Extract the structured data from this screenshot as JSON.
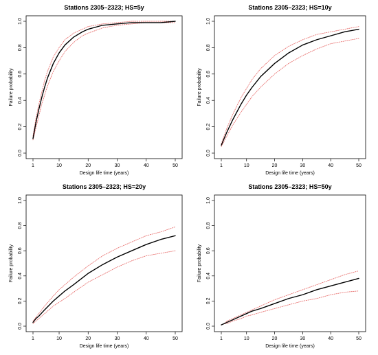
{
  "chart_data": [
    {
      "type": "line",
      "title": "Stations 2305–2323; HS=5y",
      "xlabel": "Design life time (years)",
      "ylabel": "Failure probability",
      "xlim": [
        1,
        50
      ],
      "ylim": [
        0,
        1
      ],
      "xticks": [
        1,
        10,
        20,
        30,
        40,
        50
      ],
      "yticks": [
        0.0,
        0.2,
        0.4,
        0.6,
        0.8,
        1.0
      ],
      "return_period": 5,
      "series": [
        {
          "style": "solid",
          "color": "#000000",
          "x": [
            1,
            2,
            3,
            4,
            5,
            6,
            8,
            10,
            12,
            15,
            18,
            20,
            25,
            30,
            35,
            40,
            45,
            50
          ],
          "y": [
            0.11,
            0.23,
            0.33,
            0.42,
            0.5,
            0.57,
            0.68,
            0.76,
            0.82,
            0.88,
            0.92,
            0.94,
            0.97,
            0.98,
            0.99,
            0.99,
            0.99,
            1.0
          ]
        },
        {
          "style": "dotted",
          "color": "#e8706e",
          "x": [
            1,
            2,
            3,
            4,
            5,
            6,
            8,
            10,
            12,
            15,
            18,
            20,
            25,
            30,
            35,
            40,
            45,
            50
          ],
          "y": [
            0.13,
            0.26,
            0.37,
            0.46,
            0.55,
            0.62,
            0.73,
            0.8,
            0.86,
            0.91,
            0.94,
            0.96,
            0.98,
            0.99,
            1.0,
            1.0,
            1.0,
            1.0
          ]
        },
        {
          "style": "dotted",
          "color": "#e8706e",
          "x": [
            1,
            2,
            3,
            4,
            5,
            6,
            8,
            10,
            12,
            15,
            18,
            20,
            25,
            30,
            35,
            40,
            45,
            50
          ],
          "y": [
            0.1,
            0.19,
            0.28,
            0.37,
            0.44,
            0.51,
            0.62,
            0.7,
            0.77,
            0.84,
            0.89,
            0.91,
            0.95,
            0.97,
            0.98,
            0.99,
            0.99,
            0.99
          ]
        }
      ]
    },
    {
      "type": "line",
      "title": "Stations 2305–2323; HS=10y",
      "xlabel": "Design life time (years)",
      "ylabel": "Failure probability",
      "xlim": [
        1,
        50
      ],
      "ylim": [
        0,
        1
      ],
      "xticks": [
        1,
        10,
        20,
        30,
        40,
        50
      ],
      "yticks": [
        0.0,
        0.2,
        0.4,
        0.6,
        0.8,
        1.0
      ],
      "return_period": 10,
      "series": [
        {
          "style": "solid",
          "color": "#000000",
          "x": [
            1,
            2,
            3,
            5,
            8,
            10,
            12,
            15,
            20,
            25,
            30,
            35,
            40,
            45,
            50
          ],
          "y": [
            0.06,
            0.11,
            0.16,
            0.25,
            0.37,
            0.44,
            0.5,
            0.58,
            0.68,
            0.76,
            0.82,
            0.86,
            0.89,
            0.92,
            0.94
          ]
        },
        {
          "style": "dotted",
          "color": "#e8706e",
          "x": [
            1,
            2,
            3,
            5,
            8,
            10,
            12,
            15,
            20,
            25,
            30,
            35,
            40,
            45,
            50
          ],
          "y": [
            0.07,
            0.13,
            0.19,
            0.29,
            0.42,
            0.49,
            0.56,
            0.64,
            0.74,
            0.81,
            0.86,
            0.9,
            0.92,
            0.94,
            0.96
          ]
        },
        {
          "style": "dotted",
          "color": "#e8706e",
          "x": [
            1,
            2,
            3,
            5,
            8,
            10,
            12,
            15,
            20,
            25,
            30,
            35,
            40,
            45,
            50
          ],
          "y": [
            0.05,
            0.09,
            0.13,
            0.21,
            0.31,
            0.37,
            0.43,
            0.5,
            0.6,
            0.68,
            0.74,
            0.79,
            0.83,
            0.85,
            0.87
          ]
        }
      ]
    },
    {
      "type": "line",
      "title": "Stations 2305–2323; HS=20y",
      "xlabel": "Design life time (years)",
      "ylabel": "Failure probability",
      "xlim": [
        1,
        50
      ],
      "ylim": [
        0,
        1
      ],
      "xticks": [
        1,
        10,
        20,
        30,
        40,
        50
      ],
      "yticks": [
        0.0,
        0.2,
        0.4,
        0.6,
        0.8,
        1.0
      ],
      "return_period": 20,
      "series": [
        {
          "style": "solid",
          "color": "#000000",
          "x": [
            1,
            2,
            3,
            5,
            8,
            10,
            12,
            15,
            20,
            25,
            30,
            35,
            40,
            45,
            50
          ],
          "y": [
            0.03,
            0.06,
            0.08,
            0.13,
            0.2,
            0.24,
            0.28,
            0.33,
            0.42,
            0.49,
            0.55,
            0.6,
            0.65,
            0.69,
            0.72
          ]
        },
        {
          "style": "dotted",
          "color": "#e8706e",
          "x": [
            1,
            2,
            3,
            5,
            8,
            10,
            12,
            15,
            20,
            25,
            30,
            35,
            40,
            45,
            50
          ],
          "y": [
            0.04,
            0.07,
            0.1,
            0.16,
            0.24,
            0.29,
            0.33,
            0.39,
            0.48,
            0.56,
            0.62,
            0.67,
            0.72,
            0.75,
            0.79
          ]
        },
        {
          "style": "dotted",
          "color": "#e8706e",
          "x": [
            1,
            2,
            3,
            5,
            8,
            10,
            12,
            15,
            20,
            25,
            30,
            35,
            40,
            45,
            50
          ],
          "y": [
            0.02,
            0.04,
            0.06,
            0.1,
            0.16,
            0.19,
            0.22,
            0.27,
            0.35,
            0.41,
            0.47,
            0.52,
            0.56,
            0.58,
            0.6
          ]
        }
      ]
    },
    {
      "type": "line",
      "title": "Stations 2305–2323; HS=50y",
      "xlabel": "Design life time (years)",
      "ylabel": "Failure probability",
      "xlim": [
        1,
        50
      ],
      "ylim": [
        0,
        1
      ],
      "xticks": [
        1,
        10,
        20,
        30,
        40,
        50
      ],
      "yticks": [
        0.0,
        0.2,
        0.4,
        0.6,
        0.8,
        1.0
      ],
      "return_period": 50,
      "series": [
        {
          "style": "solid",
          "color": "#000000",
          "x": [
            1,
            2,
            3,
            5,
            8,
            10,
            12,
            15,
            20,
            25,
            30,
            35,
            40,
            45,
            50
          ],
          "y": [
            0.01,
            0.02,
            0.03,
            0.05,
            0.08,
            0.1,
            0.12,
            0.14,
            0.18,
            0.22,
            0.25,
            0.29,
            0.32,
            0.35,
            0.38
          ]
        },
        {
          "style": "dotted",
          "color": "#e8706e",
          "x": [
            1,
            2,
            3,
            5,
            8,
            10,
            12,
            15,
            20,
            25,
            30,
            35,
            40,
            45,
            50
          ],
          "y": [
            0.01,
            0.02,
            0.04,
            0.06,
            0.09,
            0.11,
            0.13,
            0.16,
            0.21,
            0.25,
            0.29,
            0.33,
            0.37,
            0.41,
            0.44
          ]
        },
        {
          "style": "dotted",
          "color": "#e8706e",
          "x": [
            1,
            2,
            3,
            5,
            8,
            10,
            12,
            15,
            20,
            25,
            30,
            35,
            40,
            45,
            50
          ],
          "y": [
            0.01,
            0.02,
            0.02,
            0.04,
            0.06,
            0.08,
            0.09,
            0.11,
            0.14,
            0.17,
            0.2,
            0.22,
            0.25,
            0.27,
            0.28
          ]
        }
      ]
    }
  ]
}
